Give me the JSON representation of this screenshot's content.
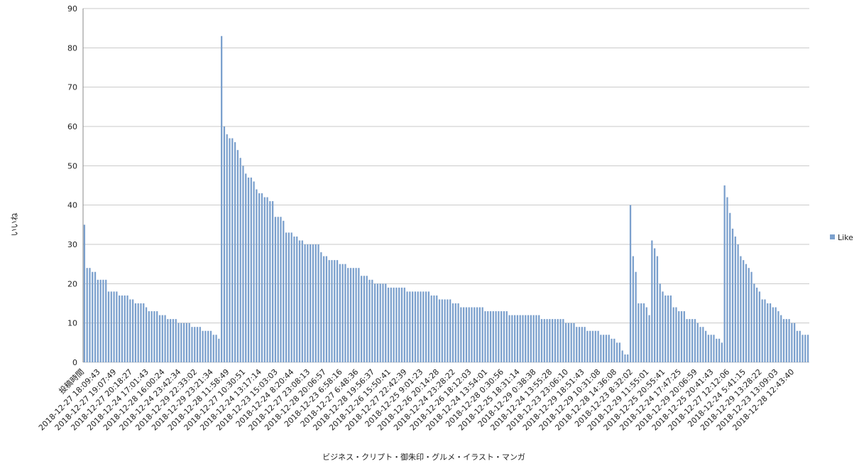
{
  "chart_data": {
    "type": "bar",
    "y_label": "いいね",
    "x_label": "ビジネス・クリプト・御朱印・グルメ・イラスト・マンガ",
    "series": [
      {
        "name": "Like",
        "color": "#7ba0cd",
        "values": [
          35,
          24,
          24,
          23,
          23,
          21,
          21,
          21,
          21,
          18,
          18,
          18,
          18,
          17,
          17,
          17,
          17,
          16,
          16,
          15,
          15,
          15,
          15,
          14,
          13,
          13,
          13,
          13,
          12,
          12,
          12,
          11,
          11,
          11,
          11,
          10,
          10,
          10,
          10,
          10,
          9,
          9,
          9,
          9,
          8,
          8,
          8,
          8,
          7,
          7,
          6,
          83,
          60,
          58,
          57,
          57,
          56,
          54,
          52,
          50,
          48,
          47,
          47,
          46,
          44,
          43,
          43,
          42,
          42,
          41,
          41,
          37,
          37,
          37,
          36,
          33,
          33,
          33,
          32,
          32,
          31,
          31,
          30,
          30,
          30,
          30,
          30,
          30,
          28,
          27,
          27,
          26,
          26,
          26,
          26,
          25,
          25,
          25,
          24,
          24,
          24,
          24,
          24,
          22,
          22,
          22,
          21,
          21,
          20,
          20,
          20,
          20,
          20,
          19,
          19,
          19,
          19,
          19,
          19,
          19,
          18,
          18,
          18,
          18,
          18,
          18,
          18,
          18,
          18,
          17,
          17,
          17,
          16,
          16,
          16,
          16,
          16,
          15,
          15,
          15,
          14,
          14,
          14,
          14,
          14,
          14,
          14,
          14,
          14,
          13,
          13,
          13,
          13,
          13,
          13,
          13,
          13,
          13,
          12,
          12,
          12,
          12,
          12,
          12,
          12,
          12,
          12,
          12,
          12,
          12,
          11,
          11,
          11,
          11,
          11,
          11,
          11,
          11,
          11,
          10,
          10,
          10,
          10,
          9,
          9,
          9,
          9,
          8,
          8,
          8,
          8,
          8,
          7,
          7,
          7,
          7,
          6,
          6,
          5,
          5,
          3,
          2,
          2,
          40,
          27,
          23,
          15,
          15,
          15,
          14,
          12,
          31,
          29,
          27,
          20,
          18,
          17,
          17,
          17,
          14,
          14,
          13,
          13,
          13,
          11,
          11,
          11,
          11,
          10,
          9,
          9,
          8,
          7,
          7,
          7,
          6,
          6,
          5,
          45,
          42,
          38,
          34,
          32,
          30,
          27,
          26,
          25,
          24,
          23,
          20,
          19,
          18,
          16,
          16,
          15,
          15,
          14,
          14,
          13,
          12,
          11,
          11,
          11,
          10,
          10,
          8,
          8,
          7,
          7,
          7
        ]
      }
    ],
    "categories": [
      "投稿時間",
      null,
      null,
      null,
      null,
      null,
      "2018-12-27 18:09:43",
      null,
      null,
      null,
      null,
      null,
      "2018-12-27 19:07:49",
      null,
      null,
      null,
      null,
      null,
      "2018-12-27 20:18:27",
      null,
      null,
      null,
      null,
      null,
      "2018-12-24 17:01:43",
      null,
      null,
      null,
      null,
      null,
      "2018-12-28 16:00:24",
      null,
      null,
      null,
      null,
      null,
      "2018-12-24 23:42:34",
      null,
      null,
      null,
      null,
      null,
      "2018-12-29 22:33:02",
      null,
      null,
      null,
      null,
      null,
      "2018-12-29 23:21:34",
      null,
      null,
      null,
      null,
      null,
      "2018-12-28 11:58:49",
      null,
      null,
      null,
      null,
      null,
      "2018-12-27 10:30:51",
      null,
      null,
      null,
      null,
      null,
      "2018-12-24 13:17:14",
      null,
      null,
      null,
      null,
      null,
      "2018-12-23 15:03:03",
      null,
      null,
      null,
      null,
      null,
      "2018-12-24 8:20:44",
      null,
      null,
      null,
      null,
      null,
      "2018-12-27 23:08:13",
      null,
      null,
      null,
      null,
      null,
      "2018-12-28 20:06:57",
      null,
      null,
      null,
      null,
      null,
      "2018-12-23 6:58:16",
      null,
      null,
      null,
      null,
      null,
      "2018-12-27 6:48:36",
      null,
      null,
      null,
      null,
      null,
      "2018-12-28 19:56:37",
      null,
      null,
      null,
      null,
      null,
      "2018-12-26 15:50:41",
      null,
      null,
      null,
      null,
      null,
      "2018-12-27 22:42:39",
      null,
      null,
      null,
      null,
      null,
      "2018-12-25 9:01:23",
      null,
      null,
      null,
      null,
      null,
      "2018-12-26 20:14:28",
      null,
      null,
      null,
      null,
      null,
      "2018-12-24 23:28:22",
      null,
      null,
      null,
      null,
      null,
      "2018-12-26 18:12:03",
      null,
      null,
      null,
      null,
      null,
      "2018-12-24 13:54:01",
      null,
      null,
      null,
      null,
      null,
      "2018-12-28 0:30:56",
      null,
      null,
      null,
      null,
      null,
      "2018-12-25 18:31:14",
      null,
      null,
      null,
      null,
      null,
      "2018-12-29 0:38:38",
      null,
      null,
      null,
      null,
      null,
      "2018-12-24 13:55:28",
      null,
      null,
      null,
      null,
      null,
      "2018-12-23 23:06:10",
      null,
      null,
      null,
      null,
      null,
      "2018-12-29 18:51:43",
      null,
      null,
      null,
      null,
      null,
      "2018-12-29 10:31:08",
      null,
      null,
      null,
      null,
      null,
      "2018-12-28 14:36:08",
      null,
      null,
      null,
      null,
      null,
      "2018-12-23 8:32:02",
      null,
      null,
      null,
      null,
      null,
      "2018-12-29 11:55:01",
      null,
      null,
      null,
      null,
      null,
      "2018-12-25 20:55:41",
      null,
      null,
      null,
      null,
      null,
      "2018-12-24 17:47:25",
      null,
      null,
      null,
      null,
      null,
      "2018-12-29 20:06:59",
      null,
      null,
      null,
      null,
      null,
      "2018-12-25 20:41:43",
      null,
      null,
      null,
      null,
      null,
      "2018-12-27 12:12:06",
      null,
      null,
      null,
      null,
      null,
      "2018-12-24 5:41:15",
      null,
      null,
      null,
      null,
      null,
      "2018-12-29 13:28:22",
      null,
      null,
      null,
      null,
      null,
      "2018-12-23 13:09:03",
      null,
      null,
      null,
      null,
      null,
      "2018-12-28 12:43:40",
      null,
      null,
      null,
      null,
      null
    ],
    "ylim": [
      0,
      90
    ],
    "yticks": [
      0,
      10,
      20,
      30,
      40,
      50,
      60,
      70,
      80,
      90
    ],
    "grid": true,
    "legend": "right"
  }
}
